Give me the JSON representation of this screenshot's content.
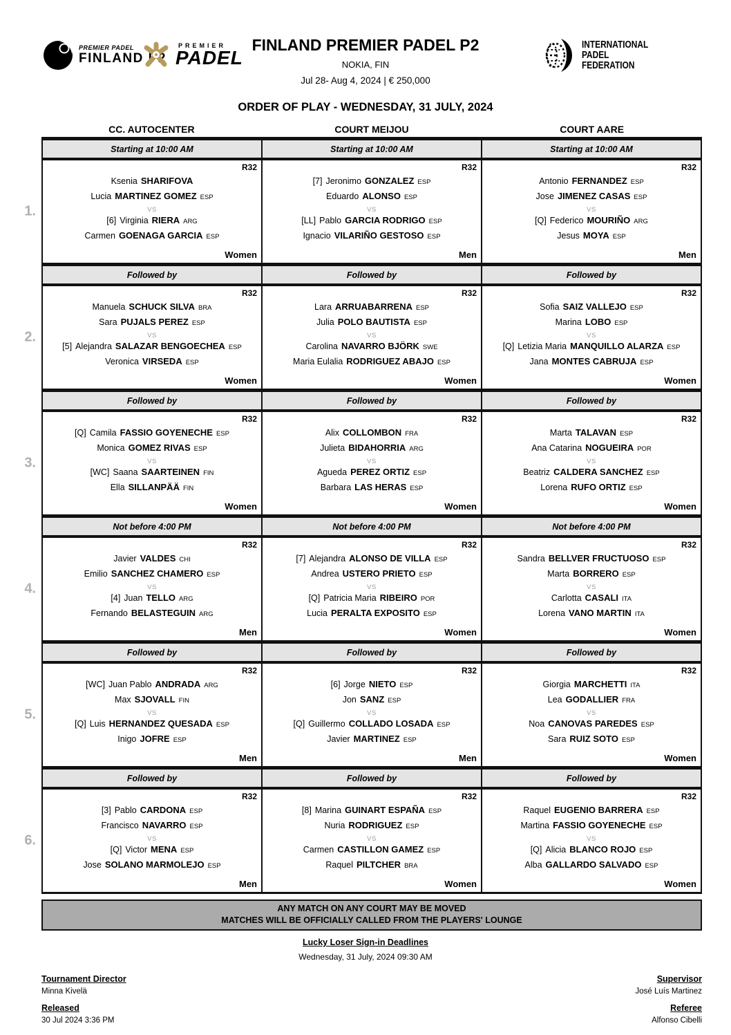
{
  "labels": {
    "vs": "VS"
  },
  "colors": {
    "band_gray": "#e4e4e4",
    "notice_gray": "#ababab",
    "accent_gold": "#b79b5e",
    "muted_gray": "#b0b0b0"
  },
  "header": {
    "event_logo": {
      "icon": "padel-ball-icon",
      "line1": "PREMIER PADEL",
      "line2": "FINLAND P2"
    },
    "premier_logo": {
      "icon": "gold-flower-icon",
      "line1": "PREMIER",
      "line2": "PADEL"
    },
    "title": "FINLAND PREMIER PADEL P2",
    "location": "NOKIA, FIN",
    "date_prize": "Jul 28- Aug 4, 2024  |  € 250,000",
    "ipf_logo": {
      "icon": "ipf-sphere-icon",
      "line1": "INTERNATIONAL",
      "line2": "PADEL",
      "line3": "FEDERATION"
    }
  },
  "order_title": "ORDER OF PLAY - WEDNESDAY, 31 JULY, 2024",
  "courts": [
    "CC. AUTOCENTER",
    "COURT MEIJOU",
    "COURT AARE"
  ],
  "sections": [
    {
      "number": "1.",
      "schedule": "Starting at 10:00 AM",
      "matches": [
        {
          "round": "R32",
          "category": "Women",
          "team1": [
            {
              "seed": "",
              "first": "Ksenia",
              "last": "SHARIFOVA",
              "country": ""
            },
            {
              "seed": "",
              "first": "Lucia",
              "last": "MARTINEZ GOMEZ",
              "country": "ESP"
            }
          ],
          "team2": [
            {
              "seed": "[6]",
              "first": "Virginia",
              "last": "RIERA",
              "country": "ARG"
            },
            {
              "seed": "",
              "first": "Carmen",
              "last": "GOENAGA GARCIA",
              "country": "ESP"
            }
          ]
        },
        {
          "round": "R32",
          "category": "Men",
          "team1": [
            {
              "seed": "[7]",
              "first": "Jeronimo",
              "last": "GONZALEZ",
              "country": "ESP"
            },
            {
              "seed": "",
              "first": "Eduardo",
              "last": "ALONSO",
              "country": "ESP"
            }
          ],
          "team2": [
            {
              "seed": "[LL]",
              "first": "Pablo",
              "last": "GARCIA RODRIGO",
              "country": "ESP"
            },
            {
              "seed": "",
              "first": "Ignacio",
              "last": "VILARIÑO GESTOSO",
              "country": "ESP"
            }
          ]
        },
        {
          "round": "R32",
          "category": "Men",
          "team1": [
            {
              "seed": "",
              "first": "Antonio",
              "last": "FERNANDEZ",
              "country": "ESP"
            },
            {
              "seed": "",
              "first": "Jose",
              "last": "JIMENEZ CASAS",
              "country": "ESP"
            }
          ],
          "team2": [
            {
              "seed": "[Q]",
              "first": "Federico",
              "last": "MOURIÑO",
              "country": "ARG"
            },
            {
              "seed": "",
              "first": "Jesus",
              "last": "MOYA",
              "country": "ESP"
            }
          ]
        }
      ]
    },
    {
      "number": "2.",
      "schedule": "Followed by",
      "matches": [
        {
          "round": "R32",
          "category": "Women",
          "team1": [
            {
              "seed": "",
              "first": "Manuela",
              "last": "SCHUCK SILVA",
              "country": "BRA"
            },
            {
              "seed": "",
              "first": "Sara",
              "last": "PUJALS PEREZ",
              "country": "ESP"
            }
          ],
          "team2": [
            {
              "seed": "[5]",
              "first": "Alejandra",
              "last": "SALAZAR BENGOECHEA",
              "country": "ESP"
            },
            {
              "seed": "",
              "first": "Veronica",
              "last": "VIRSEDA",
              "country": "ESP"
            }
          ]
        },
        {
          "round": "R32",
          "category": "Women",
          "team1": [
            {
              "seed": "",
              "first": "Lara",
              "last": "ARRUABARRENA",
              "country": "ESP"
            },
            {
              "seed": "",
              "first": "Julia",
              "last": "POLO BAUTISTA",
              "country": "ESP"
            }
          ],
          "team2": [
            {
              "seed": "",
              "first": "Carolina",
              "last": "NAVARRO BJÖRK",
              "country": "SWE"
            },
            {
              "seed": "",
              "first": "Maria Eulalia",
              "last": "RODRIGUEZ ABAJO",
              "country": "ESP"
            }
          ]
        },
        {
          "round": "R32",
          "category": "Women",
          "team1": [
            {
              "seed": "",
              "first": "Sofia",
              "last": "SAIZ VALLEJO",
              "country": "ESP"
            },
            {
              "seed": "",
              "first": "Marina",
              "last": "LOBO",
              "country": "ESP"
            }
          ],
          "team2": [
            {
              "seed": "[Q]",
              "first": "Letizia Maria",
              "last": "MANQUILLO ALARZA",
              "country": "ESP"
            },
            {
              "seed": "",
              "first": "Jana",
              "last": "MONTES CABRUJA",
              "country": "ESP"
            }
          ]
        }
      ]
    },
    {
      "number": "3.",
      "schedule": "Followed by",
      "matches": [
        {
          "round": "R32",
          "category": "Women",
          "team1": [
            {
              "seed": "[Q]",
              "first": "Camila",
              "last": "FASSIO GOYENECHE",
              "country": "ESP"
            },
            {
              "seed": "",
              "first": "Monica",
              "last": "GOMEZ RIVAS",
              "country": "ESP"
            }
          ],
          "team2": [
            {
              "seed": "[WC]",
              "first": "Saana",
              "last": "SAARTEINEN",
              "country": "FIN"
            },
            {
              "seed": "",
              "first": "Ella",
              "last": "SILLANPÄÄ",
              "country": "FIN"
            }
          ]
        },
        {
          "round": "R32",
          "category": "Women",
          "team1": [
            {
              "seed": "",
              "first": "Alix",
              "last": "COLLOMBON",
              "country": "FRA"
            },
            {
              "seed": "",
              "first": "Julieta",
              "last": "BIDAHORRIA",
              "country": "ARG"
            }
          ],
          "team2": [
            {
              "seed": "",
              "first": "Agueda",
              "last": "PEREZ ORTIZ",
              "country": "ESP"
            },
            {
              "seed": "",
              "first": "Barbara",
              "last": "LAS HERAS",
              "country": "ESP"
            }
          ]
        },
        {
          "round": "R32",
          "category": "Women",
          "team1": [
            {
              "seed": "",
              "first": "Marta",
              "last": "TALAVAN",
              "country": "ESP"
            },
            {
              "seed": "",
              "first": "Ana Catarina",
              "last": "NOGUEIRA",
              "country": "POR"
            }
          ],
          "team2": [
            {
              "seed": "",
              "first": "Beatriz",
              "last": "CALDERA SANCHEZ",
              "country": "ESP"
            },
            {
              "seed": "",
              "first": "Lorena",
              "last": "RUFO ORTIZ",
              "country": "ESP"
            }
          ]
        }
      ]
    },
    {
      "number": "4.",
      "schedule": "Not before 4:00 PM",
      "matches": [
        {
          "round": "R32",
          "category": "Men",
          "team1": [
            {
              "seed": "",
              "first": "Javier",
              "last": "VALDES",
              "country": "CHI"
            },
            {
              "seed": "",
              "first": "Emilio",
              "last": "SANCHEZ CHAMERO",
              "country": "ESP"
            }
          ],
          "team2": [
            {
              "seed": "[4]",
              "first": "Juan",
              "last": "TELLO",
              "country": "ARG"
            },
            {
              "seed": "",
              "first": "Fernando",
              "last": "BELASTEGUIN",
              "country": "ARG"
            }
          ]
        },
        {
          "round": "R32",
          "category": "Women",
          "team1": [
            {
              "seed": "[7]",
              "first": "Alejandra",
              "last": "ALONSO DE VILLA",
              "country": "ESP"
            },
            {
              "seed": "",
              "first": "Andrea",
              "last": "USTERO PRIETO",
              "country": "ESP"
            }
          ],
          "team2": [
            {
              "seed": "[Q]",
              "first": "Patricia Maria",
              "last": "RIBEIRO",
              "country": "POR"
            },
            {
              "seed": "",
              "first": "Lucia",
              "last": "PERALTA EXPOSITO",
              "country": "ESP"
            }
          ]
        },
        {
          "round": "R32",
          "category": "Women",
          "team1": [
            {
              "seed": "",
              "first": "Sandra",
              "last": "BELLVER FRUCTUOSO",
              "country": "ESP"
            },
            {
              "seed": "",
              "first": "Marta",
              "last": "BORRERO",
              "country": "ESP"
            }
          ],
          "team2": [
            {
              "seed": "",
              "first": "Carlotta",
              "last": "CASALI",
              "country": "ITA"
            },
            {
              "seed": "",
              "first": "Lorena",
              "last": "VANO MARTIN",
              "country": "ITA"
            }
          ]
        }
      ]
    },
    {
      "number": "5.",
      "schedule": "Followed by",
      "matches": [
        {
          "round": "R32",
          "category": "Men",
          "team1": [
            {
              "seed": "[WC]",
              "first": "Juan Pablo",
              "last": "ANDRADA",
              "country": "ARG"
            },
            {
              "seed": "",
              "first": "Max",
              "last": "SJOVALL",
              "country": "FIN"
            }
          ],
          "team2": [
            {
              "seed": "[Q]",
              "first": "Luis",
              "last": "HERNANDEZ QUESADA",
              "country": "ESP"
            },
            {
              "seed": "",
              "first": "Inigo",
              "last": "JOFRE",
              "country": "ESP"
            }
          ]
        },
        {
          "round": "R32",
          "category": "Men",
          "team1": [
            {
              "seed": "[6]",
              "first": "Jorge",
              "last": "NIETO",
              "country": "ESP"
            },
            {
              "seed": "",
              "first": "Jon",
              "last": "SANZ",
              "country": "ESP"
            }
          ],
          "team2": [
            {
              "seed": "[Q]",
              "first": "Guillermo",
              "last": "COLLADO LOSADA",
              "country": "ESP"
            },
            {
              "seed": "",
              "first": "Javier",
              "last": "MARTINEZ",
              "country": "ESP"
            }
          ]
        },
        {
          "round": "R32",
          "category": "Women",
          "team1": [
            {
              "seed": "",
              "first": "Giorgia",
              "last": "MARCHETTI",
              "country": "ITA"
            },
            {
              "seed": "",
              "first": "Lea",
              "last": "GODALLIER",
              "country": "FRA"
            }
          ],
          "team2": [
            {
              "seed": "",
              "first": "Noa",
              "last": "CANOVAS PAREDES",
              "country": "ESP"
            },
            {
              "seed": "",
              "first": "Sara",
              "last": "RUIZ SOTO",
              "country": "ESP"
            }
          ]
        }
      ]
    },
    {
      "number": "6.",
      "schedule": "Followed by",
      "matches": [
        {
          "round": "R32",
          "category": "Men",
          "team1": [
            {
              "seed": "[3]",
              "first": "Pablo",
              "last": "CARDONA",
              "country": "ESP"
            },
            {
              "seed": "",
              "first": "Francisco",
              "last": "NAVARRO",
              "country": "ESP"
            }
          ],
          "team2": [
            {
              "seed": "[Q]",
              "first": "Victor",
              "last": "MENA",
              "country": "ESP"
            },
            {
              "seed": "",
              "first": "Jose",
              "last": "SOLANO MARMOLEJO",
              "country": "ESP"
            }
          ]
        },
        {
          "round": "R32",
          "category": "Women",
          "team1": [
            {
              "seed": "[8]",
              "first": "Marina",
              "last": "GUINART ESPAÑA",
              "country": "ESP"
            },
            {
              "seed": "",
              "first": "Nuria",
              "last": "RODRIGUEZ",
              "country": "ESP"
            }
          ],
          "team2": [
            {
              "seed": "",
              "first": "Carmen",
              "last": "CASTILLON GAMEZ",
              "country": "ESP"
            },
            {
              "seed": "",
              "first": "Raquel",
              "last": "PILTCHER",
              "country": "BRA"
            }
          ]
        },
        {
          "round": "R32",
          "category": "Women",
          "team1": [
            {
              "seed": "",
              "first": "Raquel",
              "last": "EUGENIO BARRERA",
              "country": "ESP"
            },
            {
              "seed": "",
              "first": "Martina",
              "last": "FASSIO GOYENECHE",
              "country": "ESP"
            }
          ],
          "team2": [
            {
              "seed": "[Q]",
              "first": "Alicia",
              "last": "BLANCO ROJO",
              "country": "ESP"
            },
            {
              "seed": "",
              "first": "Alba",
              "last": "GALLARDO SALVADO",
              "country": "ESP"
            }
          ]
        }
      ]
    }
  ],
  "footer": {
    "notice_line1": "ANY MATCH ON ANY COURT MAY BE MOVED",
    "notice_line2": "MATCHES WILL BE OFFICIALLY CALLED FROM THE PLAYERS' LOUNGE",
    "lucky_loser_title": "Lucky Loser Sign-in Deadlines",
    "lucky_loser_datetime": "Wednesday, 31 July, 2024 09:30 AM",
    "tournament_director_label": "Tournament Director",
    "tournament_director_name": "Minna Kivelä",
    "released_label": "Released",
    "released_value": "30 Jul 2024  3:36 PM",
    "supervisor_label": "Supervisor",
    "supervisor_name": "José Luís Martinez",
    "referee_label": "Referee",
    "referee_name": "Alfonso Cibelli"
  }
}
